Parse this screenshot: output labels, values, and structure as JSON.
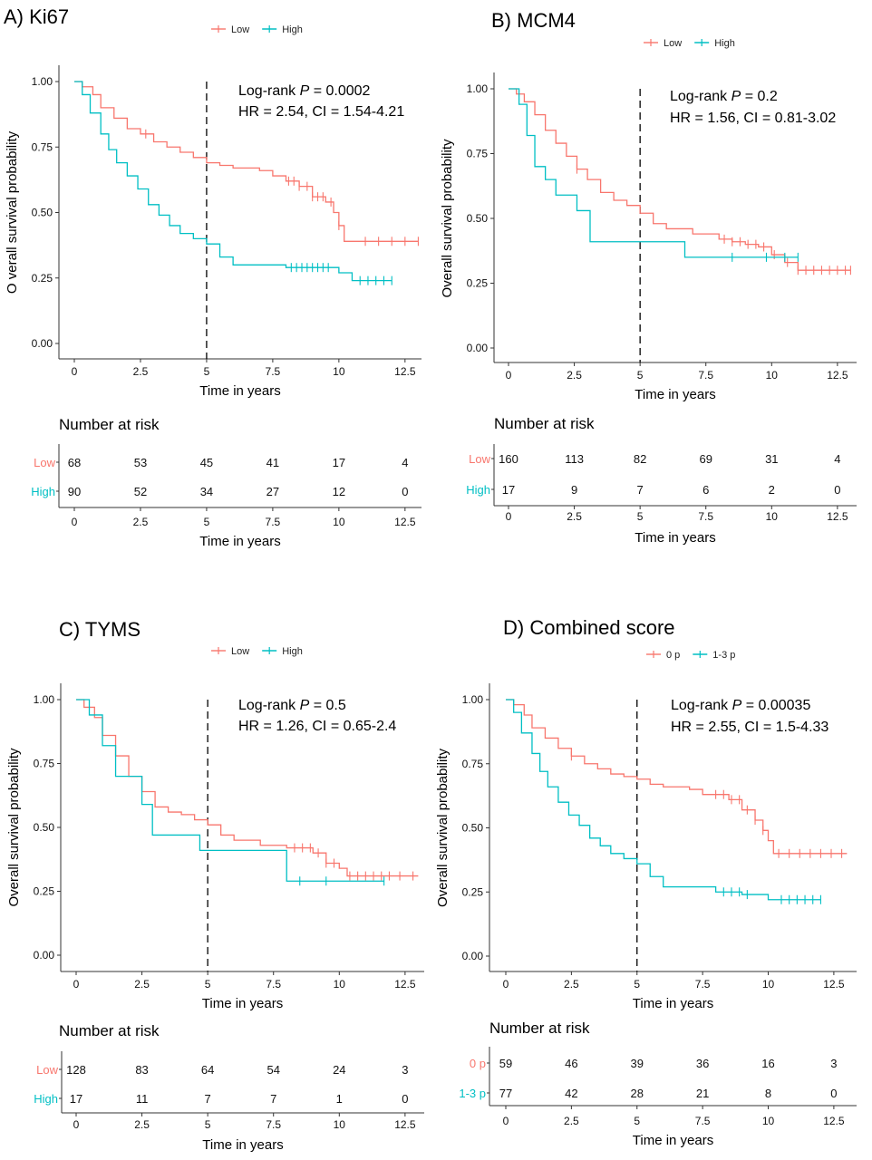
{
  "figure": {
    "colors": {
      "low": "#F8766D",
      "high": "#00BFC4"
    }
  },
  "chart_data": [
    {
      "type": "line",
      "panel_title": "A) Ki67",
      "xlabel": "Time in years",
      "ylabel": "O verall survival probability",
      "xlim": [
        0,
        13
      ],
      "ylim": [
        0,
        1
      ],
      "x_ticks": [
        "0",
        "2.5",
        "5",
        "7.5",
        "10",
        "12.5"
      ],
      "y_ticks": [
        "0.00",
        "0.25",
        "0.50",
        "0.75",
        "1.00"
      ],
      "median_line_x": 5,
      "annotation": {
        "line1_prefix": "Log-rank ",
        "line1_italic": "P",
        "line1_suffix": " = 0.0002",
        "line2": "HR = 2.54, CI = 1.54-4.21"
      },
      "legend": [
        "Low",
        "High"
      ],
      "series": [
        {
          "name": "Low",
          "color": "#F8766D",
          "x": [
            0,
            0.3,
            0.7,
            1.0,
            1.5,
            2.0,
            2.5,
            3.0,
            3.5,
            4.0,
            4.5,
            5.0,
            5.5,
            6.0,
            7.0,
            7.5,
            8.0,
            8.5,
            9.0,
            9.5,
            9.8,
            10.0,
            10.2,
            11.0,
            12.0,
            13.0
          ],
          "y": [
            1.0,
            0.98,
            0.95,
            0.9,
            0.86,
            0.82,
            0.8,
            0.77,
            0.75,
            0.73,
            0.71,
            0.69,
            0.68,
            0.67,
            0.66,
            0.64,
            0.62,
            0.6,
            0.56,
            0.54,
            0.5,
            0.45,
            0.39,
            0.39,
            0.39,
            0.39
          ],
          "censor_x": [
            2.7,
            8.1,
            8.3,
            8.5,
            8.8,
            9.0,
            9.2,
            9.4,
            9.7,
            10.0,
            11.0,
            11.5,
            12.0,
            12.5,
            13.0
          ]
        },
        {
          "name": "High",
          "color": "#00BFC4",
          "x": [
            0,
            0.3,
            0.6,
            1.0,
            1.3,
            1.6,
            2.0,
            2.4,
            2.8,
            3.2,
            3.6,
            4.0,
            4.5,
            5.0,
            5.5,
            6.0,
            7.0,
            8.0,
            9.0,
            10.0,
            10.5,
            11.0,
            12.0
          ],
          "y": [
            1.0,
            0.95,
            0.88,
            0.8,
            0.74,
            0.69,
            0.64,
            0.59,
            0.53,
            0.49,
            0.45,
            0.42,
            0.4,
            0.38,
            0.33,
            0.3,
            0.3,
            0.29,
            0.29,
            0.27,
            0.24,
            0.24,
            0.24
          ],
          "censor_x": [
            8.2,
            8.4,
            8.6,
            8.8,
            9.0,
            9.2,
            9.4,
            9.6,
            10.8,
            11.1,
            11.4,
            11.7,
            12.0
          ]
        }
      ],
      "risk_table": {
        "title": "Number at risk",
        "strata": [
          "Low",
          "High"
        ],
        "times": [
          "0",
          "2.5",
          "5",
          "7.5",
          "10",
          "12.5"
        ],
        "counts": [
          [
            "68",
            "53",
            "45",
            "41",
            "17",
            "4"
          ],
          [
            "90",
            "52",
            "34",
            "27",
            "12",
            "0"
          ]
        ],
        "xlabel": "Time in years"
      }
    },
    {
      "type": "line",
      "panel_title": "B) MCM4",
      "xlabel": "Time in years",
      "ylabel": "Overall survival probability",
      "xlim": [
        0,
        13
      ],
      "ylim": [
        0,
        1
      ],
      "x_ticks": [
        "0",
        "2.5",
        "5",
        "7.5",
        "10",
        "12.5"
      ],
      "y_ticks": [
        "0.00",
        "0.25",
        "0.50",
        "0.75",
        "1.00"
      ],
      "median_line_x": 5,
      "annotation": {
        "line1_prefix": "Log-rank ",
        "line1_italic": "P",
        "line1_suffix": " = 0.2",
        "line2": "HR = 1.56, CI = 0.81-3.02"
      },
      "legend": [
        "Low",
        "High"
      ],
      "series": [
        {
          "name": "Low",
          "color": "#F8766D",
          "x": [
            0,
            0.3,
            0.6,
            1.0,
            1.4,
            1.8,
            2.2,
            2.6,
            3.0,
            3.5,
            4.0,
            4.5,
            5.0,
            5.5,
            6.0,
            7.0,
            8.0,
            8.5,
            9.0,
            9.5,
            10.0,
            10.5,
            11.0,
            13.0
          ],
          "y": [
            1.0,
            0.98,
            0.95,
            0.9,
            0.84,
            0.79,
            0.74,
            0.69,
            0.65,
            0.6,
            0.57,
            0.55,
            0.52,
            0.48,
            0.46,
            0.44,
            0.42,
            0.41,
            0.4,
            0.39,
            0.36,
            0.33,
            0.3,
            0.3
          ],
          "censor_x": [
            2.6,
            8.2,
            8.5,
            8.8,
            9.1,
            9.4,
            9.7,
            10.1,
            10.6,
            11.0,
            11.3,
            11.6,
            11.9,
            12.2,
            12.5,
            12.8,
            13.0
          ]
        },
        {
          "name": "High",
          "color": "#00BFC4",
          "x": [
            0,
            0.4,
            0.7,
            1.0,
            1.4,
            1.8,
            2.2,
            2.6,
            3.1,
            4.0,
            5.0,
            6.0,
            6.7,
            8.0,
            9.0,
            10.0,
            11.0
          ],
          "y": [
            1.0,
            0.94,
            0.82,
            0.7,
            0.65,
            0.59,
            0.59,
            0.53,
            0.41,
            0.41,
            0.41,
            0.41,
            0.35,
            0.35,
            0.35,
            0.35,
            0.35
          ],
          "censor_x": [
            8.5,
            9.8,
            10.5,
            11.0
          ]
        }
      ],
      "risk_table": {
        "title": "Number at risk",
        "strata": [
          "Low",
          "High"
        ],
        "times": [
          "0",
          "2.5",
          "5",
          "7.5",
          "10",
          "12.5"
        ],
        "counts": [
          [
            "160",
            "113",
            "82",
            "69",
            "31",
            "4"
          ],
          [
            "17",
            "9",
            "7",
            "6",
            "2",
            "0"
          ]
        ],
        "xlabel": "Time in years"
      }
    },
    {
      "type": "line",
      "panel_title": "C) TYMS",
      "xlabel": "Time in years",
      "ylabel": "Overall survival probability",
      "xlim": [
        0,
        13
      ],
      "ylim": [
        0,
        1
      ],
      "x_ticks": [
        "0",
        "2.5",
        "5",
        "7.5",
        "10",
        "12.5"
      ],
      "y_ticks": [
        "0.00",
        "0.25",
        "0.50",
        "0.75",
        "1.00"
      ],
      "median_line_x": 5,
      "annotation": {
        "line1_prefix": "Log-rank ",
        "line1_italic": "P",
        "line1_suffix": " = 0.5",
        "line2": "HR = 1.26, CI = 0.65-2.4"
      },
      "legend": [
        "Low",
        "High"
      ],
      "series": [
        {
          "name": "Low",
          "color": "#F8766D",
          "x": [
            0,
            0.3,
            0.7,
            1.0,
            1.5,
            2.0,
            2.5,
            3.0,
            3.5,
            4.0,
            4.5,
            5.0,
            5.5,
            6.0,
            7.0,
            8.0,
            9.0,
            9.5,
            10.0,
            10.3,
            11.0,
            13.0
          ],
          "y": [
            1.0,
            0.97,
            0.93,
            0.86,
            0.78,
            0.7,
            0.64,
            0.58,
            0.56,
            0.55,
            0.53,
            0.51,
            0.47,
            0.45,
            0.43,
            0.42,
            0.4,
            0.36,
            0.34,
            0.31,
            0.31,
            0.31
          ],
          "censor_x": [
            8.3,
            8.6,
            8.9,
            9.2,
            9.5,
            9.8,
            10.4,
            10.7,
            11.0,
            11.3,
            11.6,
            11.9,
            12.3,
            12.8
          ]
        },
        {
          "name": "High",
          "color": "#00BFC4",
          "x": [
            0,
            0.5,
            1.0,
            1.5,
            2.0,
            2.5,
            2.9,
            4.2,
            4.7,
            6.0,
            7.5,
            8.0,
            9.0,
            10.0,
            11.7
          ],
          "y": [
            1.0,
            0.94,
            0.82,
            0.7,
            0.7,
            0.59,
            0.47,
            0.47,
            0.41,
            0.41,
            0.41,
            0.29,
            0.29,
            0.29,
            0.29
          ],
          "censor_x": [
            8.5,
            9.5,
            11.7
          ]
        }
      ],
      "risk_table": {
        "title": "Number at risk",
        "strata": [
          "Low",
          "High"
        ],
        "times": [
          "0",
          "2.5",
          "5",
          "7.5",
          "10",
          "12.5"
        ],
        "counts": [
          [
            "128",
            "83",
            "64",
            "54",
            "24",
            "3"
          ],
          [
            "17",
            "11",
            "7",
            "7",
            "1",
            "0"
          ]
        ],
        "xlabel": "Time in years"
      }
    },
    {
      "type": "line",
      "panel_title": "D) Combined score",
      "xlabel": "Time in years",
      "ylabel": "Overall survival probability",
      "xlim": [
        0,
        13
      ],
      "ylim": [
        0,
        1
      ],
      "x_ticks": [
        "0",
        "2.5",
        "5",
        "7.5",
        "10",
        "12.5"
      ],
      "y_ticks": [
        "0.00",
        "0.25",
        "0.50",
        "0.75",
        "1.00"
      ],
      "median_line_x": 5,
      "annotation": {
        "line1_prefix": "Log-rank ",
        "line1_italic": "P",
        "line1_suffix": " = 0.00035",
        "line2": "HR = 2.55, CI = 1.5-4.33"
      },
      "legend": [
        "0 p",
        "1-3 p"
      ],
      "series": [
        {
          "name": "0 p",
          "color": "#F8766D",
          "x": [
            0,
            0.3,
            0.7,
            1.0,
            1.5,
            2.0,
            2.5,
            3.0,
            3.5,
            4.0,
            4.5,
            5.0,
            5.5,
            6.0,
            7.0,
            7.5,
            8.0,
            8.5,
            9.0,
            9.5,
            9.8,
            10.0,
            10.2,
            11.0,
            13.0
          ],
          "y": [
            1.0,
            0.98,
            0.94,
            0.89,
            0.85,
            0.81,
            0.78,
            0.75,
            0.73,
            0.71,
            0.7,
            0.69,
            0.67,
            0.66,
            0.65,
            0.63,
            0.63,
            0.61,
            0.57,
            0.53,
            0.49,
            0.45,
            0.4,
            0.4,
            0.4
          ],
          "censor_x": [
            2.5,
            8.0,
            8.3,
            8.6,
            8.9,
            9.2,
            9.5,
            9.8,
            10.4,
            10.8,
            11.2,
            11.6,
            12.0,
            12.4,
            12.8
          ]
        },
        {
          "name": "1-3 p",
          "color": "#00BFC4",
          "x": [
            0,
            0.3,
            0.6,
            1.0,
            1.3,
            1.6,
            2.0,
            2.4,
            2.8,
            3.2,
            3.6,
            4.0,
            4.5,
            5.0,
            5.5,
            6.0,
            7.0,
            8.0,
            9.0,
            10.0,
            10.5,
            12.0
          ],
          "y": [
            1.0,
            0.95,
            0.87,
            0.79,
            0.72,
            0.66,
            0.6,
            0.55,
            0.51,
            0.46,
            0.43,
            0.4,
            0.38,
            0.36,
            0.31,
            0.27,
            0.27,
            0.25,
            0.24,
            0.22,
            0.22,
            0.22
          ],
          "censor_x": [
            8.3,
            8.6,
            8.9,
            9.2,
            10.5,
            10.8,
            11.1,
            11.4,
            11.7,
            12.0
          ]
        }
      ],
      "risk_table": {
        "title": "Number at risk",
        "strata": [
          "0 p",
          "1-3 p"
        ],
        "times": [
          "0",
          "2.5",
          "5",
          "7.5",
          "10",
          "12.5"
        ],
        "counts": [
          [
            "59",
            "46",
            "39",
            "36",
            "16",
            "3"
          ],
          [
            "77",
            "42",
            "28",
            "21",
            "8",
            "0"
          ]
        ],
        "xlabel": "Time in years"
      }
    }
  ]
}
